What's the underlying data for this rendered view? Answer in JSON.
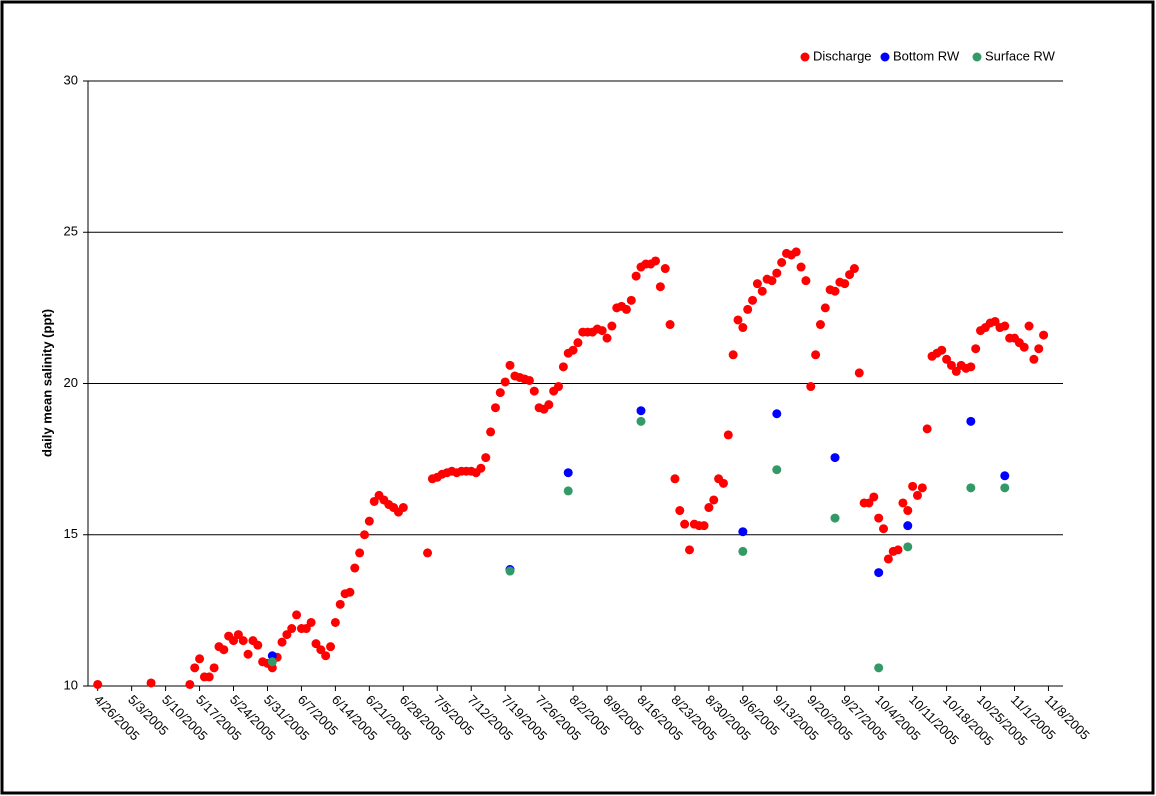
{
  "chart_data": {
    "type": "scatter",
    "ylabel": "daily mean salinity (ppt)",
    "xlim": [
      "4/24/2005",
      "11/11/2005"
    ],
    "xticks": [
      "4/26/2005",
      "5/3/2005",
      "5/10/2005",
      "5/17/2005",
      "5/24/2005",
      "5/31/2005",
      "6/7/2005",
      "6/14/2005",
      "6/21/2005",
      "6/28/2005",
      "7/5/2005",
      "7/12/2005",
      "7/19/2005",
      "7/26/2005",
      "8/2/2005",
      "8/9/2005",
      "8/16/2005",
      "8/23/2005",
      "8/30/2005",
      "9/6/2005",
      "9/13/2005",
      "9/20/2005",
      "9/27/2005",
      "10/4/2005",
      "10/11/2005",
      "10/18/2005",
      "10/25/2005",
      "11/1/2005",
      "11/8/2005"
    ],
    "ylim": [
      10,
      30
    ],
    "yticks": [
      10,
      15,
      20,
      25,
      30
    ],
    "grid": true,
    "legend": "top-right",
    "series": [
      {
        "name": "Discharge",
        "color": "#ff0000",
        "x": [
          "4/26/2005",
          "5/7/2005",
          "5/15/2005",
          "5/16/2005",
          "5/17/2005",
          "5/18/2005",
          "5/19/2005",
          "5/20/2005",
          "5/21/2005",
          "5/22/2005",
          "5/23/2005",
          "5/24/2005",
          "5/25/2005",
          "5/26/2005",
          "5/27/2005",
          "5/28/2005",
          "5/29/2005",
          "5/30/2005",
          "5/31/2005",
          "6/1/2005",
          "6/2/2005",
          "6/3/2005",
          "6/4/2005",
          "6/5/2005",
          "6/6/2005",
          "6/7/2005",
          "6/8/2005",
          "6/9/2005",
          "6/10/2005",
          "6/11/2005",
          "6/12/2005",
          "6/13/2005",
          "6/14/2005",
          "6/15/2005",
          "6/16/2005",
          "6/17/2005",
          "6/18/2005",
          "6/19/2005",
          "6/20/2005",
          "6/21/2005",
          "6/22/2005",
          "6/23/2005",
          "6/24/2005",
          "6/25/2005",
          "6/26/2005",
          "6/27/2005",
          "6/28/2005",
          "7/3/2005",
          "7/4/2005",
          "7/5/2005",
          "7/6/2005",
          "7/7/2005",
          "7/8/2005",
          "7/9/2005",
          "7/10/2005",
          "7/11/2005",
          "7/12/2005",
          "7/13/2005",
          "7/14/2005",
          "7/15/2005",
          "7/16/2005",
          "7/17/2005",
          "7/18/2005",
          "7/19/2005",
          "7/20/2005",
          "7/21/2005",
          "7/22/2005",
          "7/23/2005",
          "7/24/2005",
          "7/25/2005",
          "7/26/2005",
          "7/27/2005",
          "7/28/2005",
          "7/29/2005",
          "7/30/2005",
          "7/31/2005",
          "8/1/2005",
          "8/2/2005",
          "8/3/2005",
          "8/4/2005",
          "8/5/2005",
          "8/6/2005",
          "8/7/2005",
          "8/8/2005",
          "8/9/2005",
          "8/10/2005",
          "8/11/2005",
          "8/12/2005",
          "8/13/2005",
          "8/14/2005",
          "8/15/2005",
          "8/16/2005",
          "8/17/2005",
          "8/18/2005",
          "8/19/2005",
          "8/20/2005",
          "8/21/2005",
          "8/22/2005",
          "8/23/2005",
          "8/24/2005",
          "8/25/2005",
          "8/26/2005",
          "8/27/2005",
          "8/28/2005",
          "8/29/2005",
          "8/30/2005",
          "8/31/2005",
          "9/1/2005",
          "9/2/2005",
          "9/3/2005",
          "9/4/2005",
          "9/5/2005",
          "9/6/2005",
          "9/7/2005",
          "9/8/2005",
          "9/9/2005",
          "9/10/2005",
          "9/11/2005",
          "9/12/2005",
          "9/13/2005",
          "9/14/2005",
          "9/15/2005",
          "9/16/2005",
          "9/17/2005",
          "9/18/2005",
          "9/19/2005",
          "9/20/2005",
          "9/21/2005",
          "9/22/2005",
          "9/23/2005",
          "9/24/2005",
          "9/25/2005",
          "9/26/2005",
          "9/27/2005",
          "9/28/2005",
          "9/29/2005",
          "9/30/2005",
          "10/1/2005",
          "10/2/2005",
          "10/3/2005",
          "10/4/2005",
          "10/5/2005",
          "10/6/2005",
          "10/7/2005",
          "10/8/2005",
          "10/9/2005",
          "10/10/2005",
          "10/11/2005",
          "10/12/2005",
          "10/13/2005",
          "10/14/2005",
          "10/15/2005",
          "10/16/2005",
          "10/17/2005",
          "10/18/2005",
          "10/19/2005",
          "10/20/2005",
          "10/21/2005",
          "10/22/2005",
          "10/23/2005",
          "10/24/2005",
          "10/25/2005",
          "10/26/2005",
          "10/27/2005",
          "10/28/2005",
          "10/29/2005",
          "10/30/2005",
          "10/31/2005",
          "11/1/2005",
          "11/2/2005",
          "11/3/2005",
          "11/4/2005",
          "11/5/2005",
          "11/6/2005",
          "11/7/2005"
        ],
        "values": [
          10.05,
          10.1,
          10.05,
          10.6,
          10.9,
          10.3,
          10.3,
          10.6,
          11.3,
          11.2,
          11.65,
          11.5,
          11.7,
          11.5,
          11.05,
          11.5,
          11.35,
          10.8,
          10.75,
          10.6,
          10.95,
          11.45,
          11.7,
          11.9,
          12.35,
          11.9,
          11.9,
          12.1,
          11.4,
          11.2,
          11.0,
          11.3,
          12.1,
          12.7,
          13.05,
          13.1,
          13.9,
          14.4,
          15.0,
          15.45,
          16.1,
          16.3,
          16.15,
          16.0,
          15.9,
          15.75,
          15.9,
          14.4,
          16.85,
          16.9,
          17.0,
          17.05,
          17.1,
          17.05,
          17.1,
          17.1,
          17.1,
          17.05,
          17.2,
          17.55,
          18.4,
          19.2,
          19.7,
          20.05,
          20.6,
          20.25,
          20.2,
          20.15,
          20.1,
          19.75,
          19.2,
          19.15,
          19.3,
          19.75,
          19.9,
          20.55,
          21.0,
          21.1,
          21.35,
          21.7,
          21.7,
          21.7,
          21.8,
          21.75,
          21.5,
          21.9,
          22.5,
          22.55,
          22.45,
          22.75,
          23.55,
          23.85,
          23.95,
          23.95,
          24.05,
          23.2,
          23.8,
          21.95,
          16.85,
          15.8,
          15.35,
          14.5,
          15.35,
          15.3,
          15.3,
          15.9,
          16.15,
          16.85,
          16.7,
          18.3,
          20.95,
          22.1,
          21.85,
          22.45,
          22.75,
          23.3,
          23.05,
          23.45,
          23.4,
          23.65,
          24.0,
          24.3,
          24.25,
          24.35,
          23.85,
          23.4,
          19.9,
          20.95,
          21.95,
          22.5,
          23.1,
          23.05,
          23.35,
          23.3,
          23.6,
          23.8,
          20.35,
          16.05,
          16.05,
          16.25,
          15.55,
          15.2,
          14.2,
          14.45,
          14.5,
          16.05,
          15.8,
          16.6,
          16.3,
          16.55,
          18.5,
          20.9,
          21.0,
          21.1,
          20.8,
          20.6,
          20.4,
          20.6,
          20.5,
          20.55,
          21.15,
          21.75,
          21.85,
          22.0,
          22.05,
          21.85,
          21.9,
          21.5,
          21.5,
          21.35,
          21.2,
          21.9,
          20.8,
          21.15,
          21.6
        ]
      },
      {
        "name": "Bottom RW",
        "color": "#0000ff",
        "x": [
          "6/1/2005",
          "7/20/2005",
          "8/1/2005",
          "8/16/2005",
          "9/6/2005",
          "9/13/2005",
          "9/25/2005",
          "10/4/2005",
          "10/10/2005",
          "10/23/2005",
          "10/30/2005"
        ],
        "values": [
          11.0,
          13.85,
          17.05,
          19.1,
          15.1,
          19.0,
          17.55,
          13.75,
          15.3,
          18.75,
          16.95
        ]
      },
      {
        "name": "Surface RW",
        "color": "#339966",
        "x": [
          "6/1/2005",
          "7/20/2005",
          "8/1/2005",
          "8/16/2005",
          "9/6/2005",
          "9/13/2005",
          "9/25/2005",
          "10/4/2005",
          "10/10/2005",
          "10/23/2005",
          "10/30/2005"
        ],
        "values": [
          10.8,
          13.8,
          16.45,
          18.75,
          14.45,
          17.15,
          15.55,
          10.6,
          14.6,
          16.55,
          16.55
        ]
      }
    ]
  }
}
